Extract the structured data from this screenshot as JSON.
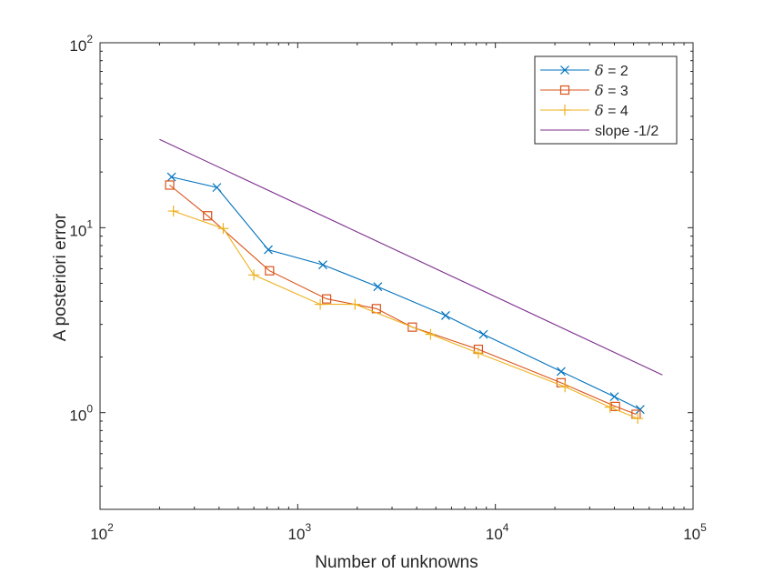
{
  "chart_data": {
    "type": "line",
    "xscale": "log",
    "yscale": "log",
    "xlim": [
      100,
      100000
    ],
    "ylim": [
      0.3,
      100
    ],
    "xlabel": "Number of unknowns",
    "ylabel": "A posteriori error",
    "legend_position": "top-right",
    "x_ticks": [
      {
        "base": "10",
        "exp": "2",
        "value": 100
      },
      {
        "base": "10",
        "exp": "3",
        "value": 1000
      },
      {
        "base": "10",
        "exp": "4",
        "value": 10000
      },
      {
        "base": "10",
        "exp": "5",
        "value": 100000
      }
    ],
    "y_ticks": [
      {
        "base": "10",
        "exp": "0",
        "value": 1
      },
      {
        "base": "10",
        "exp": "1",
        "value": 10
      },
      {
        "base": "10",
        "exp": "2",
        "value": 100
      }
    ],
    "series": [
      {
        "name": "δ = 2",
        "sym": "δ",
        "rest": " = 2",
        "color": "#0072BD",
        "marker": "x",
        "x": [
          230,
          390,
          710,
          1340,
          2540,
          5600,
          8700,
          21500,
          40000,
          54000
        ],
        "y": [
          18.8,
          16.5,
          7.6,
          6.3,
          4.8,
          3.35,
          2.65,
          1.67,
          1.22,
          1.04
        ]
      },
      {
        "name": "δ = 3",
        "sym": "δ",
        "rest": " = 3",
        "color": "#D95319",
        "marker": "square",
        "x": [
          225,
          350,
          720,
          1400,
          2500,
          3800,
          8200,
          21500,
          40500,
          51500
        ],
        "y": [
          17.0,
          11.6,
          5.85,
          4.12,
          3.65,
          2.9,
          2.2,
          1.45,
          1.08,
          0.98
        ]
      },
      {
        "name": "δ = 4",
        "sym": "δ",
        "rest": " = 4",
        "color": "#EDB120",
        "marker": "plus",
        "x": [
          235,
          420,
          600,
          1300,
          1950,
          4700,
          8200,
          22500,
          38000,
          52500
        ],
        "y": [
          12.3,
          9.9,
          5.55,
          3.85,
          3.85,
          2.65,
          2.1,
          1.38,
          1.07,
          0.93
        ]
      },
      {
        "name": "slope -1/2",
        "sym": "",
        "rest": "slope -1/2",
        "color": "#7E2F8E",
        "marker": "none",
        "x": [
          200,
          70000
        ],
        "y": [
          30,
          1.6
        ]
      }
    ]
  }
}
